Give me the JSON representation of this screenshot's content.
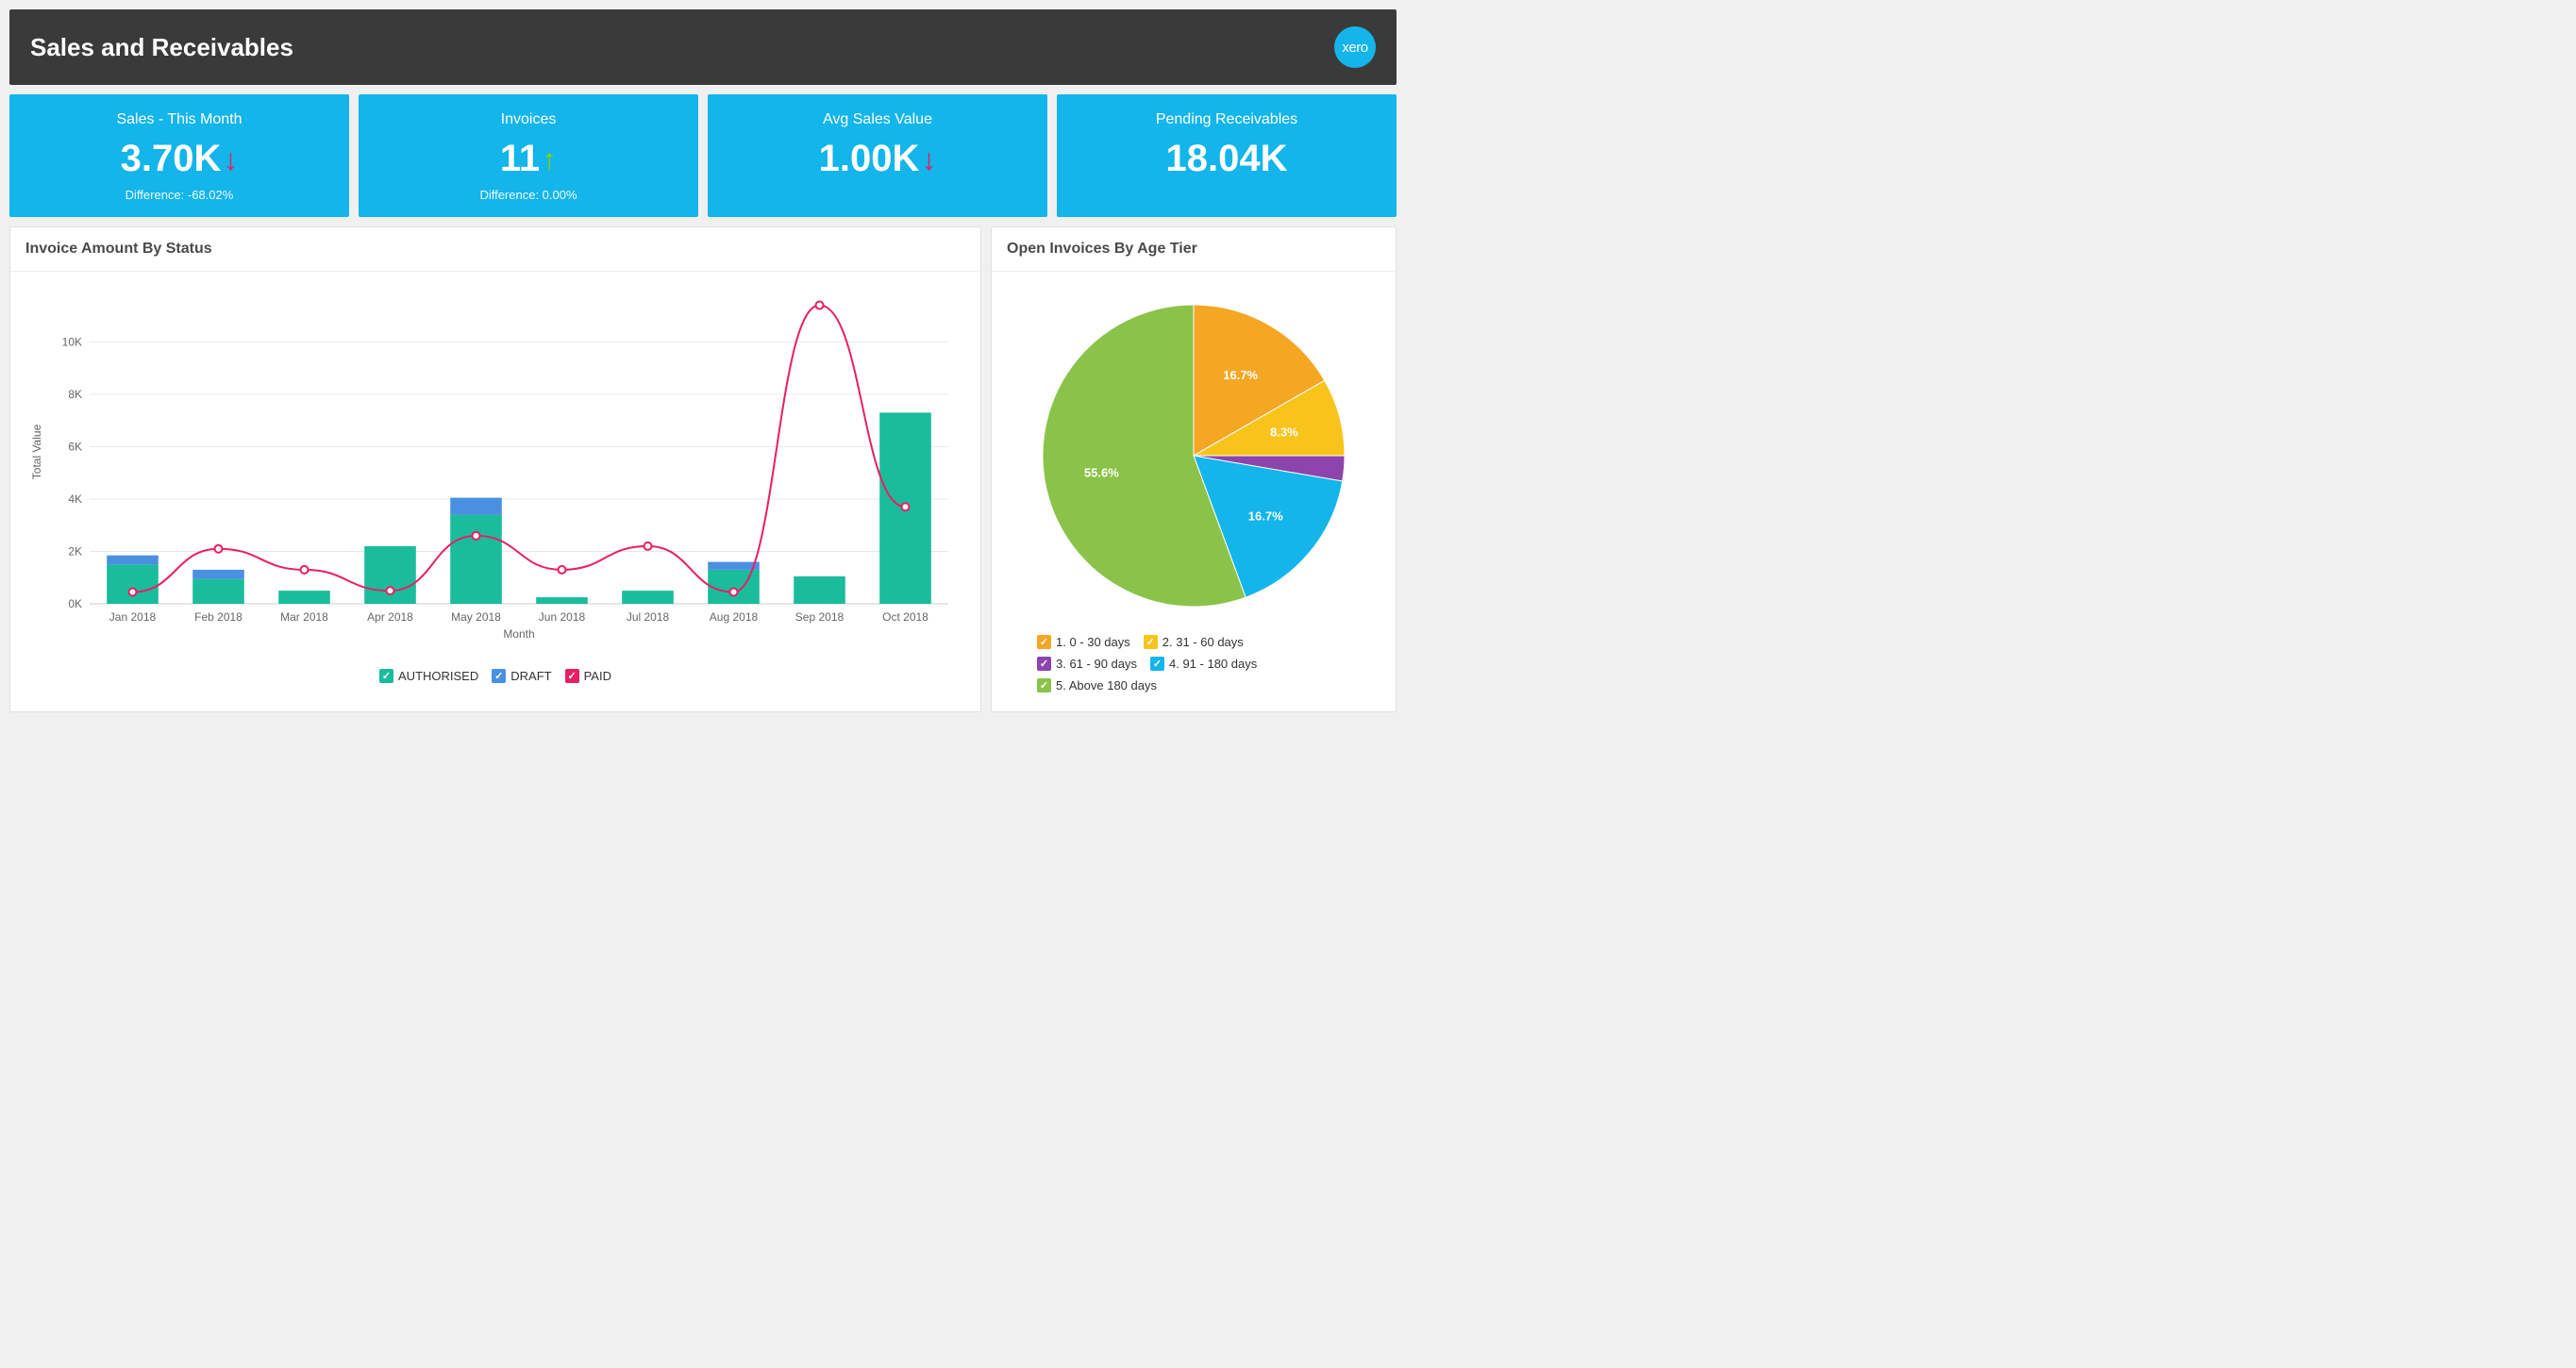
{
  "header": {
    "title": "Sales and Receivables",
    "logo_text": "xero"
  },
  "cards": [
    {
      "title": "Sales - This Month",
      "value": "3.70K",
      "arrow": "down",
      "diff": "Difference: -68.02%"
    },
    {
      "title": "Invoices",
      "value": "11",
      "arrow": "up",
      "diff": "Difference: 0.00%"
    },
    {
      "title": "Avg Sales Value",
      "value": "1.00K",
      "arrow": "down",
      "diff": ""
    },
    {
      "title": "Pending Receivables",
      "value": "18.04K",
      "arrow": "",
      "diff": ""
    }
  ],
  "colors": {
    "card_bg": "#13b5ea",
    "arrow_down": "#e91e63",
    "arrow_up": "#7ed321",
    "page_bg": "#f0f0f0",
    "header_bg": "#3a3a3a"
  },
  "bar_chart": {
    "title": "Invoice Amount By Status",
    "type": "bar+line",
    "x_label": "Month",
    "y_label": "Total Value",
    "categories": [
      "Jan 2018",
      "Feb 2018",
      "Mar 2018",
      "Apr 2018",
      "May 2018",
      "Jun 2018",
      "Jul 2018",
      "Aug 2018",
      "Sep 2018",
      "Oct 2018"
    ],
    "series": {
      "AUTHORISED": {
        "color": "#1abc9c",
        "values": [
          1500,
          950,
          500,
          2200,
          3400,
          250,
          500,
          1300,
          1050,
          7300
        ]
      },
      "DRAFT": {
        "color": "#4a90e2",
        "values": [
          350,
          350,
          0,
          0,
          650,
          0,
          0,
          300,
          0,
          0
        ]
      },
      "PAID": {
        "color": "#e91e63",
        "type": "line",
        "values": [
          450,
          2100,
          1300,
          500,
          2600,
          1300,
          2200,
          450,
          11400,
          3700
        ]
      }
    },
    "y_ticks": [
      0,
      2000,
      4000,
      6000,
      8000,
      10000
    ],
    "y_tick_labels": [
      "0K",
      "2K",
      "4K",
      "6K",
      "8K",
      "10K"
    ],
    "ylim": [
      0,
      11600
    ],
    "grid_color": "#e8e8e8",
    "axis_color": "#666666",
    "label_fontsize": 12,
    "marker_radius": 4,
    "marker_fill": "#ffffff",
    "line_width": 2,
    "bar_group_width": 0.6
  },
  "pie_chart": {
    "title": "Open Invoices By Age Tier",
    "type": "pie",
    "start_angle": -90,
    "slices": [
      {
        "label": "1. 0 - 30 days",
        "value": 16.7,
        "color": "#f5a623",
        "text": "16.7%"
      },
      {
        "label": "2. 31 - 60 days",
        "value": 8.3,
        "color": "#f8c41c",
        "text": "8.3%"
      },
      {
        "label": "3. 61 - 90 days",
        "value": 2.7,
        "color": "#8e44ad",
        "text": ""
      },
      {
        "label": "4. 91 - 180 days",
        "value": 16.7,
        "color": "#13b5ea",
        "text": "16.7%"
      },
      {
        "label": "5. Above 180 days",
        "value": 55.6,
        "color": "#8bc34a",
        "text": "55.6%"
      }
    ],
    "label_color": "#ffffff",
    "label_fontsize": 13
  }
}
